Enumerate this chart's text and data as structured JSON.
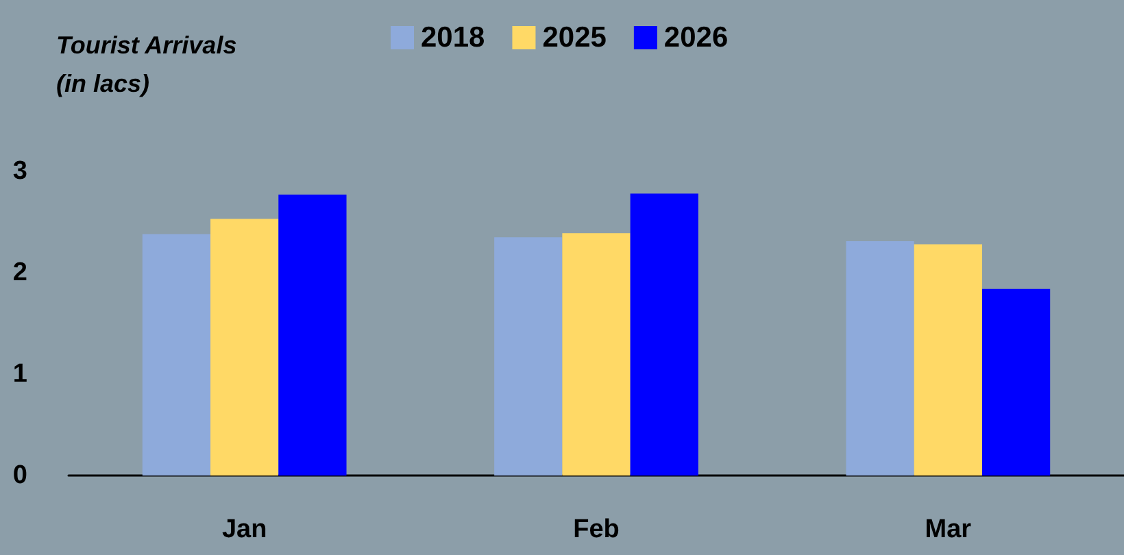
{
  "chart_data": {
    "type": "bar",
    "ylabel": "Tourist Arrivals\n(in lacs)",
    "categories": [
      "Jan",
      "Feb",
      "Mar"
    ],
    "series": [
      {
        "name": "2018",
        "color": "#8eaadb",
        "values": [
          2.38,
          2.35,
          2.31
        ]
      },
      {
        "name": "2025",
        "color": "#ffd966",
        "values": [
          2.53,
          2.39,
          2.28
        ]
      },
      {
        "name": "2026",
        "color": "#0000ff",
        "values": [
          2.77,
          2.78,
          1.84
        ]
      }
    ],
    "ylim": [
      0,
      3
    ],
    "yticks": [
      0,
      1,
      2,
      3
    ],
    "grid": false,
    "legend": "top"
  }
}
